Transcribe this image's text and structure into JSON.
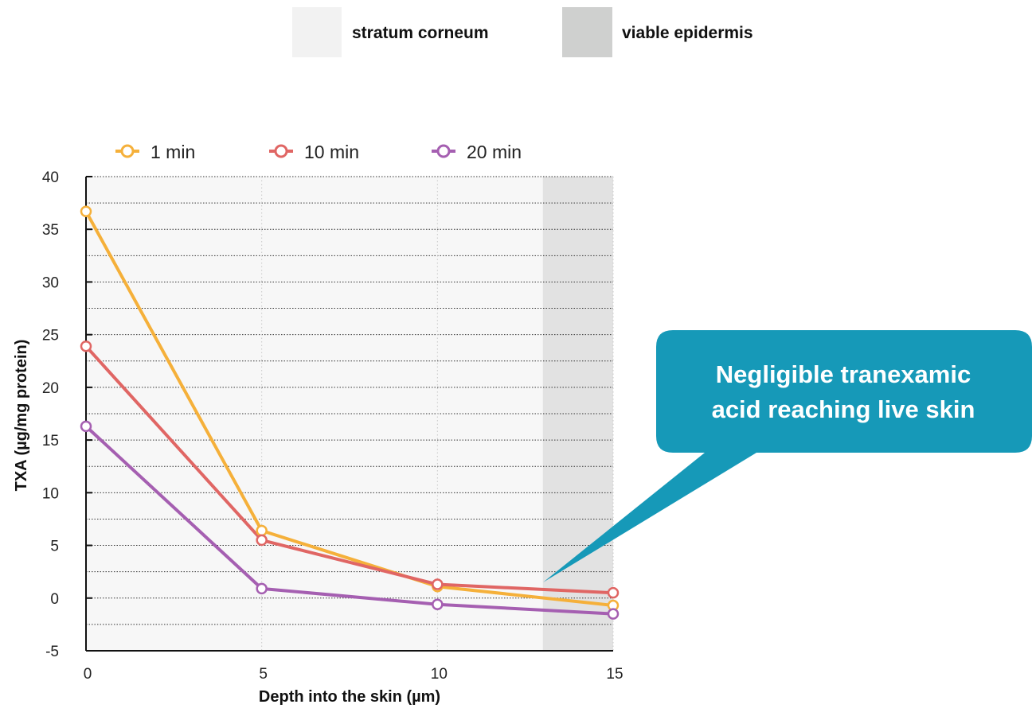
{
  "layer_legend": [
    {
      "label": "stratum corneum",
      "color": "#f2f2f2"
    },
    {
      "label": "viable epidermis",
      "color": "#cfd0cf"
    }
  ],
  "callout": {
    "lines": [
      "Negligible tranexamic",
      "acid reaching live skin"
    ],
    "color": "#1699b8"
  },
  "chart_data": {
    "type": "line",
    "title": "",
    "xlabel": "Depth into the skin (µm)",
    "ylabel": "TXA (µg/mg protein)",
    "xlim": [
      0,
      15
    ],
    "ylim": [
      -5,
      40
    ],
    "x_ticks": [
      0,
      5,
      10,
      15
    ],
    "y_ticks": [
      -5,
      0,
      5,
      10,
      15,
      20,
      25,
      30,
      35,
      40
    ],
    "grid": true,
    "legend_position": "top",
    "regions": [
      {
        "layer": "stratum corneum",
        "x_start": 0,
        "x_end": 13,
        "color": "#f7f7f7"
      },
      {
        "layer": "viable epidermis",
        "x_start": 13,
        "x_end": 15,
        "color": "#e2e2e2"
      }
    ],
    "x": [
      0,
      5,
      10,
      15
    ],
    "series": [
      {
        "name": "1 min",
        "color": "#f5b03a",
        "values": [
          36.7,
          6.4,
          1.1,
          -0.7
        ]
      },
      {
        "name": "10 min",
        "color": "#e06664",
        "values": [
          23.9,
          5.5,
          1.3,
          0.5
        ]
      },
      {
        "name": "20 min",
        "color": "#a55fb1",
        "values": [
          16.3,
          0.9,
          -0.6,
          -1.5
        ]
      }
    ]
  }
}
